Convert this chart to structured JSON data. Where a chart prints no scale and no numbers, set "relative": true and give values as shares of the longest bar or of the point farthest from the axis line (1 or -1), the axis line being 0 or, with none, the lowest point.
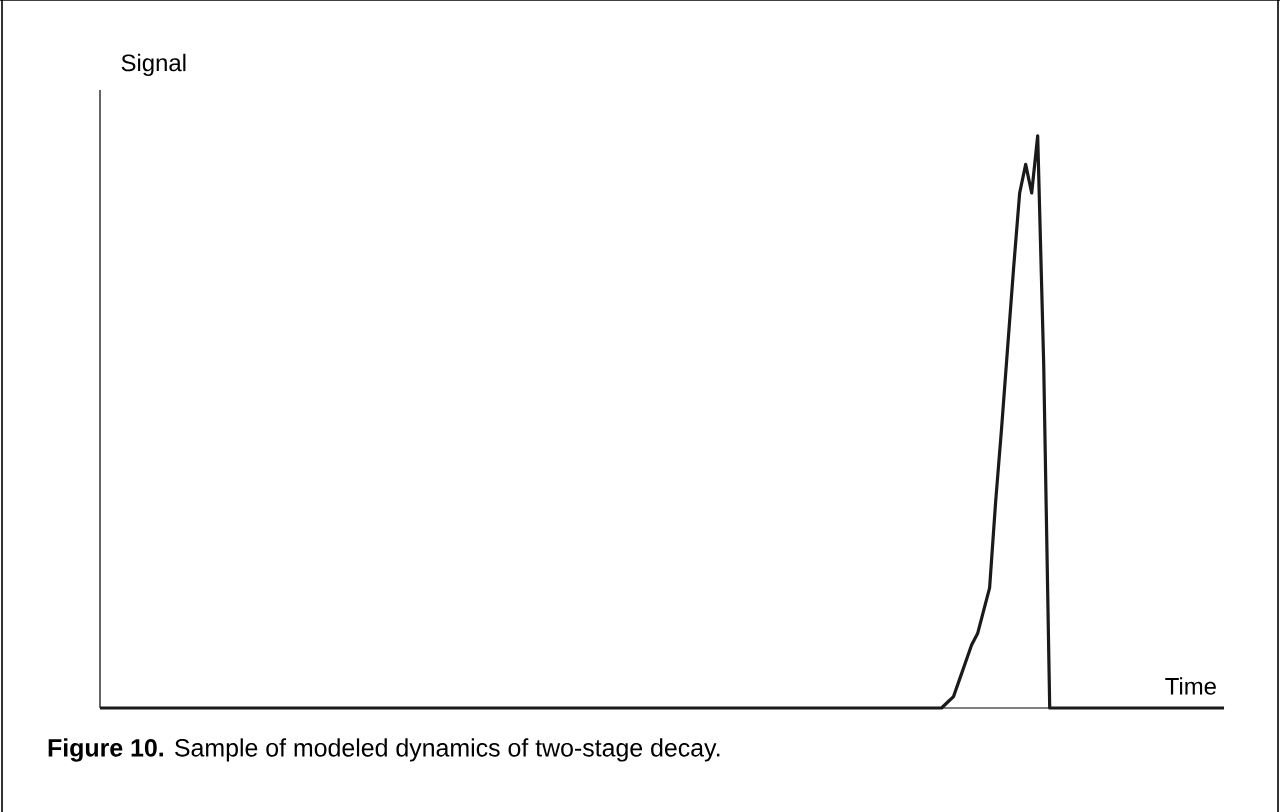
{
  "chart_data": {
    "type": "line",
    "relative": true,
    "xlabel": "Time",
    "ylabel": "Signal",
    "color": "#1a1a1a",
    "annotations": [
      "**Figure 10.** Sample of modeled dynamics of two-stage decay."
    ],
    "categories": [
      null,
      null,
      null,
      null,
      null,
      null,
      null,
      null,
      null,
      null,
      null,
      null,
      null,
      null,
      null,
      null,
      null,
      null,
      null,
      null,
      null,
      null,
      null,
      null,
      null,
      null,
      null,
      null,
      null,
      null,
      null,
      null,
      null,
      null,
      null,
      null,
      null,
      null,
      null,
      null,
      null,
      null,
      null,
      null,
      null,
      null,
      null,
      null,
      null,
      null,
      null,
      null,
      null,
      null,
      null,
      null,
      null,
      null,
      null,
      null,
      null,
      null,
      null,
      null,
      null,
      null,
      null,
      null,
      null,
      null,
      null,
      null,
      null,
      null,
      null,
      null,
      null,
      null,
      null,
      null,
      null,
      null,
      null,
      null,
      null,
      null,
      null,
      null,
      null,
      null,
      null,
      null,
      null,
      null,
      null,
      null,
      null,
      null,
      null,
      null,
      null,
      null,
      null,
      null,
      null,
      null,
      null,
      null,
      null,
      null,
      null,
      null,
      null,
      null,
      null,
      null,
      null,
      null,
      null,
      null,
      null,
      null,
      null,
      null,
      null,
      null,
      null,
      null,
      null,
      null,
      null,
      null,
      null,
      null,
      null,
      null,
      null,
      null,
      null,
      null,
      null,
      null,
      null,
      null,
      null,
      null,
      null,
      null,
      null,
      null,
      null,
      null,
      null,
      null,
      null,
      null,
      null,
      null,
      null,
      null,
      null,
      null,
      null,
      null,
      null,
      null,
      null,
      null,
      null,
      null,
      null,
      null,
      null,
      null,
      null,
      null,
      null,
      null,
      null,
      null,
      null,
      null,
      null,
      null,
      null,
      null,
      null,
      null
    ],
    "values": [
      0,
      0,
      0,
      0,
      0,
      0,
      0,
      0,
      0,
      0,
      0,
      0,
      0,
      0,
      0,
      0,
      0,
      0,
      0,
      0,
      0,
      0,
      0,
      0,
      0,
      0,
      0,
      0,
      0,
      0,
      0,
      0,
      0,
      0,
      0,
      0,
      0,
      0,
      0,
      0,
      0,
      0,
      0,
      0,
      0,
      0,
      0,
      0,
      0,
      0,
      0,
      0,
      0,
      0,
      0,
      0,
      0,
      0,
      0,
      0,
      0,
      0,
      0,
      0,
      0,
      0,
      0,
      0,
      0,
      0,
      0,
      0,
      0,
      0,
      0,
      0,
      0,
      0,
      0,
      0,
      0,
      0,
      0,
      0,
      0,
      0,
      0,
      0,
      0,
      0,
      0,
      0,
      0,
      0,
      0,
      0,
      0,
      0,
      0,
      0,
      0,
      0,
      0,
      0,
      0,
      0,
      0,
      0,
      0,
      0,
      0,
      0,
      0,
      0,
      0,
      0,
      0,
      0,
      0,
      0,
      0,
      0,
      0,
      0,
      0,
      0,
      0,
      0,
      0,
      0,
      0,
      0,
      0,
      0,
      0,
      0,
      0,
      0,
      0,
      0,
      0,
      0.01,
      0.02,
      0.05,
      0.08,
      0.11,
      0.13,
      0.17,
      0.21,
      0.36,
      0.49,
      0.63,
      0.77,
      0.9,
      0.95,
      0.9,
      1.0,
      0.6,
      0,
      0,
      0,
      0,
      0,
      0,
      0,
      0,
      0,
      0,
      0,
      0,
      0,
      0,
      0,
      0,
      0,
      0,
      0,
      0,
      0,
      0,
      0,
      0,
      0,
      0,
      0,
      0,
      0,
      0
    ]
  }
}
